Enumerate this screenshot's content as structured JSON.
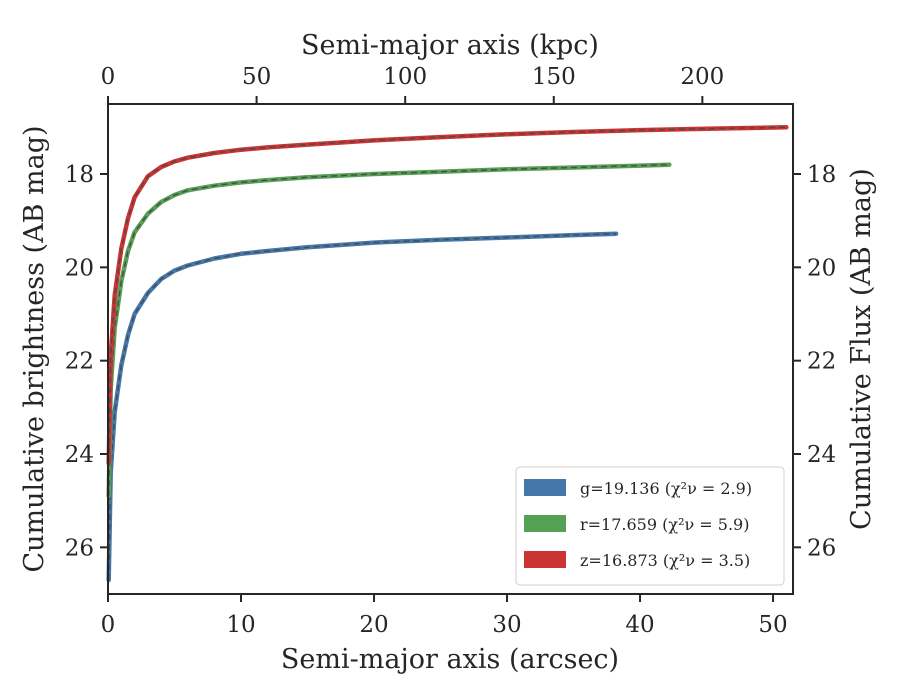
{
  "chart_data": {
    "type": "line",
    "xlabel": "Semi-major axis (arcsec)",
    "ylabel": "Cumulative brightness (AB mag)",
    "x2label": "Semi-major axis (kpc)",
    "y2label": "Cumulative Flux (AB mag)",
    "xlim": [
      0,
      51.5
    ],
    "ylim": [
      27.0,
      16.5
    ],
    "y_inverted": true,
    "x2lim": [
      0,
      230.5
    ],
    "xticks": [
      0,
      10,
      20,
      30,
      40,
      50
    ],
    "x2ticks": [
      0,
      50,
      100,
      150,
      200
    ],
    "yticks": [
      18,
      20,
      22,
      24,
      26
    ],
    "grid": false,
    "legend_position": "lower-right",
    "series": [
      {
        "name": "g",
        "legend_value": "=19.136",
        "chi2_label": "(χ²ν = 2.9)",
        "color": "#4477aa",
        "model_color": "#4a4a4a",
        "x": [
          0.05,
          0.2,
          0.5,
          1.0,
          1.5,
          2.0,
          3.0,
          4.0,
          5.0,
          6.0,
          8.0,
          10.0,
          12.0,
          15.0,
          20.0,
          25.0,
          30.0,
          35.0,
          38.2
        ],
        "y": [
          26.7,
          24.4,
          23.1,
          22.1,
          21.45,
          21.0,
          20.55,
          20.25,
          20.07,
          19.96,
          19.81,
          19.71,
          19.65,
          19.57,
          19.47,
          19.41,
          19.36,
          19.31,
          19.28
        ]
      },
      {
        "name": "r",
        "legend_value": "=17.659",
        "chi2_label": "(χ²ν = 5.9)",
        "color": "#55a055",
        "model_color": "#4a4a4a",
        "x": [
          0.05,
          0.2,
          0.5,
          1.0,
          1.5,
          2.0,
          3.0,
          4.0,
          5.0,
          6.0,
          8.0,
          10.0,
          12.0,
          15.0,
          20.0,
          25.0,
          30.0,
          35.0,
          40.0,
          42.2
        ],
        "y": [
          24.9,
          22.6,
          21.3,
          20.3,
          19.65,
          19.25,
          18.85,
          18.6,
          18.45,
          18.35,
          18.25,
          18.18,
          18.13,
          18.07,
          18.0,
          17.95,
          17.9,
          17.86,
          17.82,
          17.8
        ]
      },
      {
        "name": "z",
        "legend_value": "=16.873",
        "chi2_label": "(χ²ν = 3.5)",
        "color": "#cc3333",
        "model_color": "#4a4a4a",
        "x": [
          0.05,
          0.2,
          0.5,
          1.0,
          1.5,
          2.0,
          3.0,
          4.0,
          5.0,
          6.0,
          8.0,
          10.0,
          12.0,
          15.0,
          20.0,
          25.0,
          30.0,
          35.0,
          40.0,
          45.0,
          51.0
        ],
        "y": [
          24.2,
          21.9,
          20.6,
          19.6,
          18.95,
          18.5,
          18.05,
          17.85,
          17.73,
          17.65,
          17.55,
          17.48,
          17.43,
          17.37,
          17.28,
          17.21,
          17.15,
          17.1,
          17.06,
          17.03,
          17.0
        ]
      }
    ]
  }
}
